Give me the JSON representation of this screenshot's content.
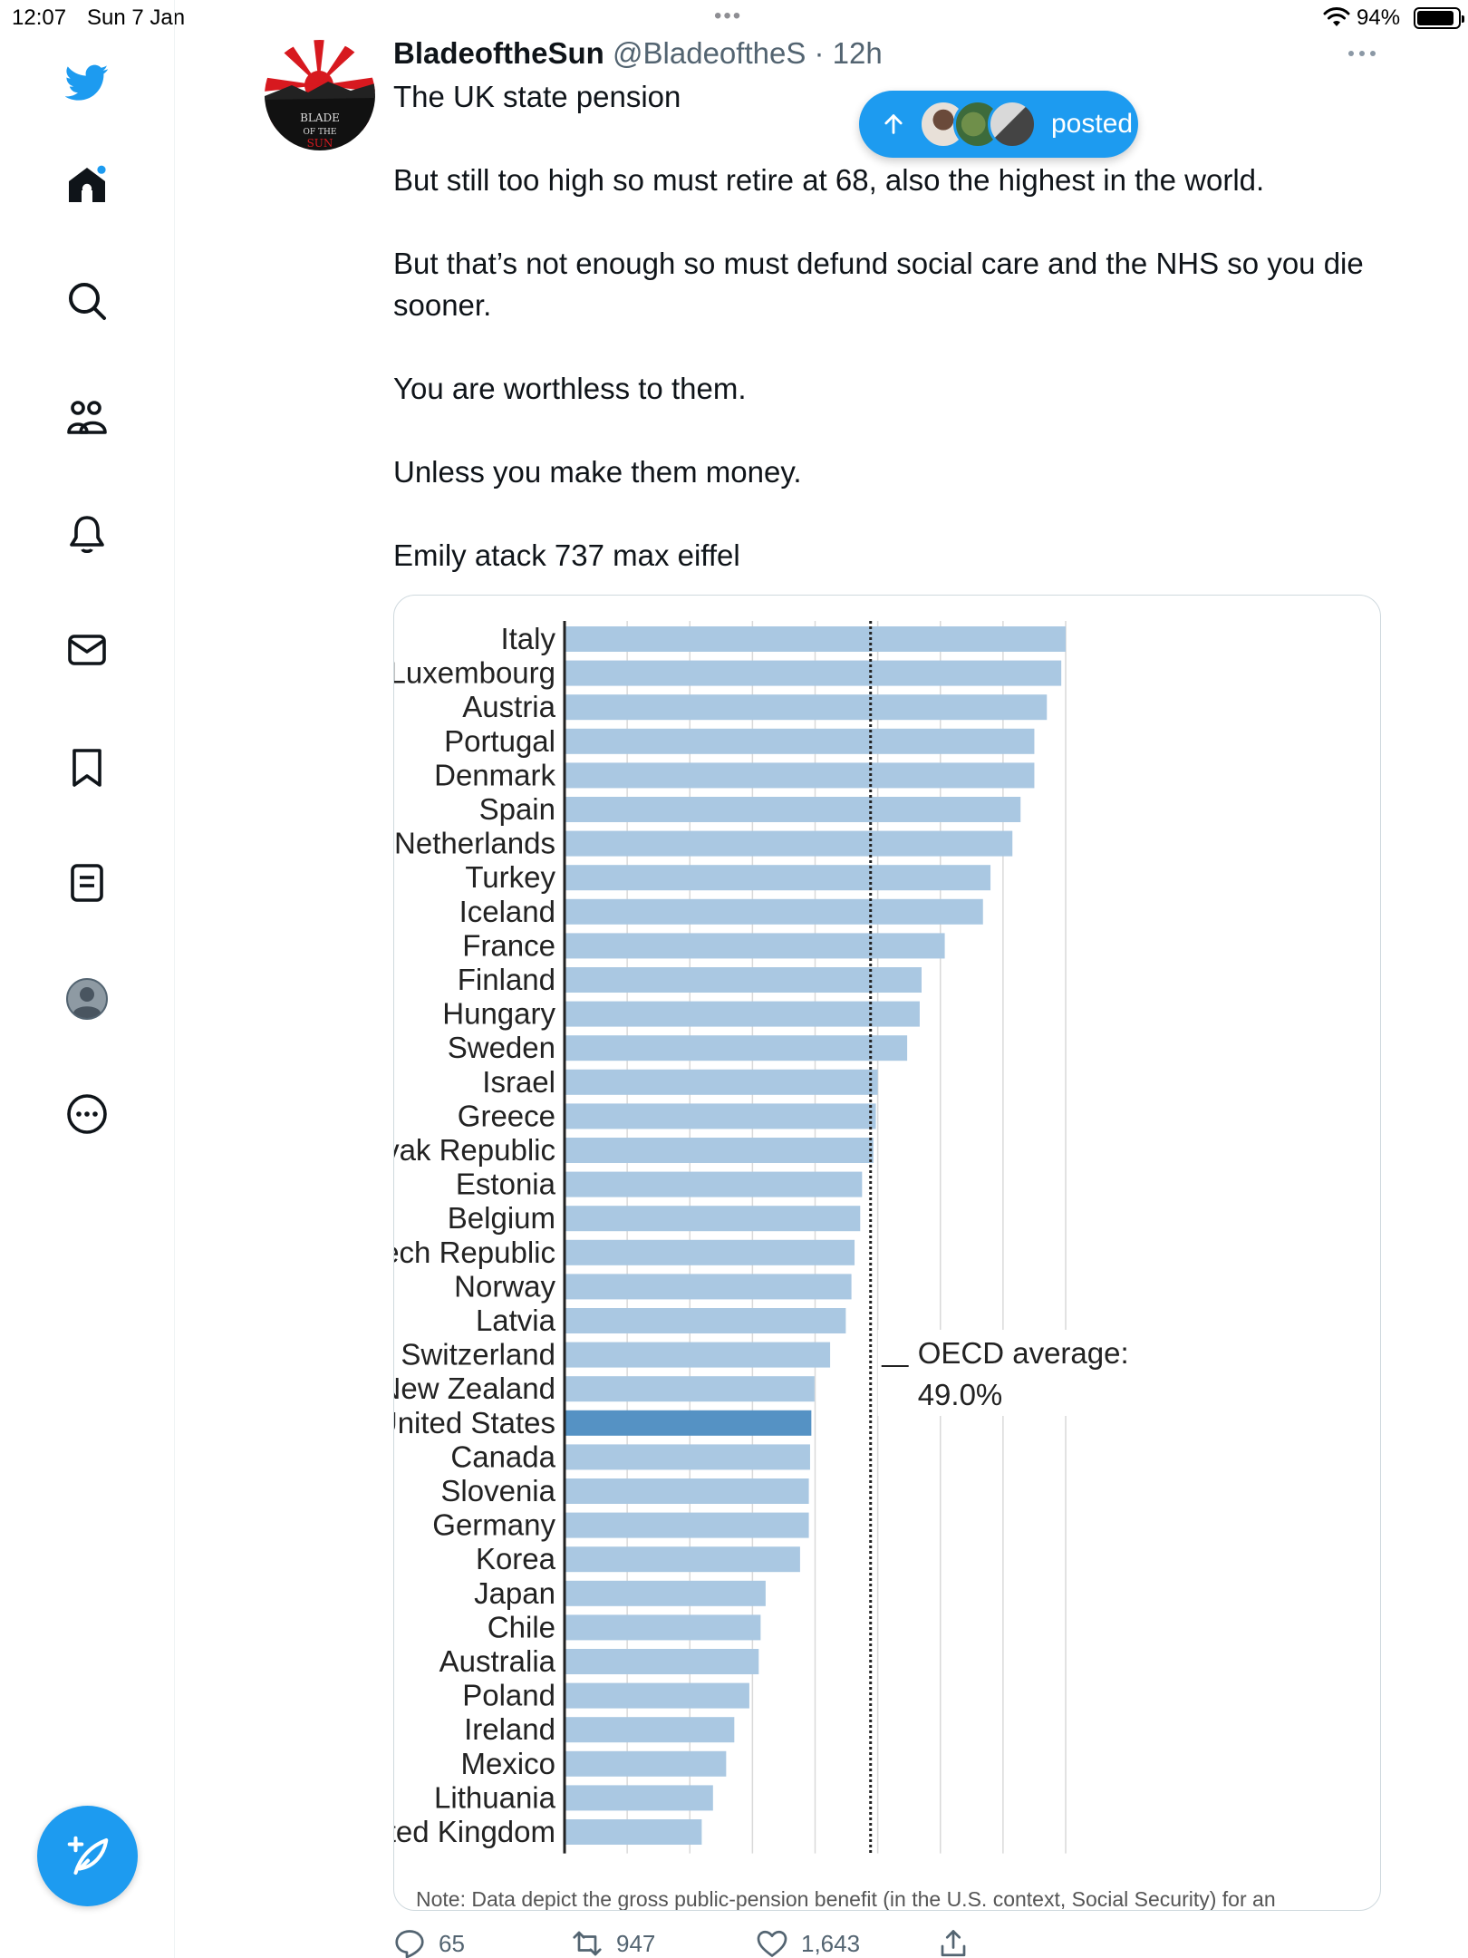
{
  "status_bar": {
    "time": "12:07",
    "date": "Sun 7 Jan",
    "battery": "94%"
  },
  "sidebar": {
    "items": [
      {
        "icon": "twitter-bird-icon"
      },
      {
        "icon": "home-icon"
      },
      {
        "icon": "search-icon"
      },
      {
        "icon": "communities-icon"
      },
      {
        "icon": "notifications-bell-icon"
      },
      {
        "icon": "messages-envelope-icon"
      },
      {
        "icon": "bookmark-icon"
      },
      {
        "icon": "lists-icon"
      },
      {
        "icon": "profile-icon"
      },
      {
        "icon": "more-circle-icon"
      }
    ],
    "compose_icon": "compose-feather-icon"
  },
  "tweet": {
    "display_name": "BladeoftheSun",
    "handle": "@BladeoftheS",
    "time": "· 12h",
    "paragraphs": [
      "The UK state pension",
      "But still too high so must retire at 68, also the highest in the world.",
      "But that’s not enough so must defund social care and the NHS so you die sooner.",
      "You are worthless to them.",
      "Unless you make them money.",
      "Emily atack 737 max eiffel"
    ],
    "note": "Note: Data depict the gross public-pension benefit (in the U.S. context, Social Security) for an",
    "posted_label": "posted",
    "actions": {
      "replies": "65",
      "retweets": "947",
      "likes": "1,643"
    }
  },
  "colors": {
    "accent": "#1d9bf0",
    "bar": "#aac8e2",
    "bar_highlight": "#5592c4"
  },
  "chart_data": {
    "type": "bar",
    "orientation": "horizontal",
    "categories": [
      "Italy",
      "Luxembourg",
      "Austria",
      "Portugal",
      "Denmark",
      "Spain",
      "Netherlands",
      "Turkey",
      "Iceland",
      "France",
      "Finland",
      "Hungary",
      "Sweden",
      "Israel",
      "Greece",
      "Slovak Republic",
      "Estonia",
      "Belgium",
      "Czech Republic",
      "Norway",
      "Latvia",
      "Switzerland",
      "New Zealand",
      "United States",
      "Canada",
      "Slovenia",
      "Germany",
      "Korea",
      "Japan",
      "Chile",
      "Australia",
      "Poland",
      "Ireland",
      "Mexico",
      "Lithuania",
      "United Kingdom"
    ],
    "values": [
      80.0,
      79.3,
      77.0,
      75.0,
      75.0,
      72.8,
      71.5,
      68.0,
      66.8,
      60.7,
      57.0,
      56.7,
      54.7,
      50.0,
      49.7,
      49.3,
      47.5,
      47.2,
      46.3,
      45.8,
      44.9,
      42.4,
      39.9,
      39.4,
      39.2,
      39.0,
      39.0,
      37.6,
      32.1,
      31.3,
      31.0,
      29.5,
      27.1,
      25.8,
      23.7,
      21.9
    ],
    "highlight": "United States",
    "reference_line": {
      "value": 49.0,
      "label_line1": "OECD average:",
      "label_line2": "49.0%"
    },
    "xlim": [
      0,
      80
    ],
    "grid": true
  }
}
